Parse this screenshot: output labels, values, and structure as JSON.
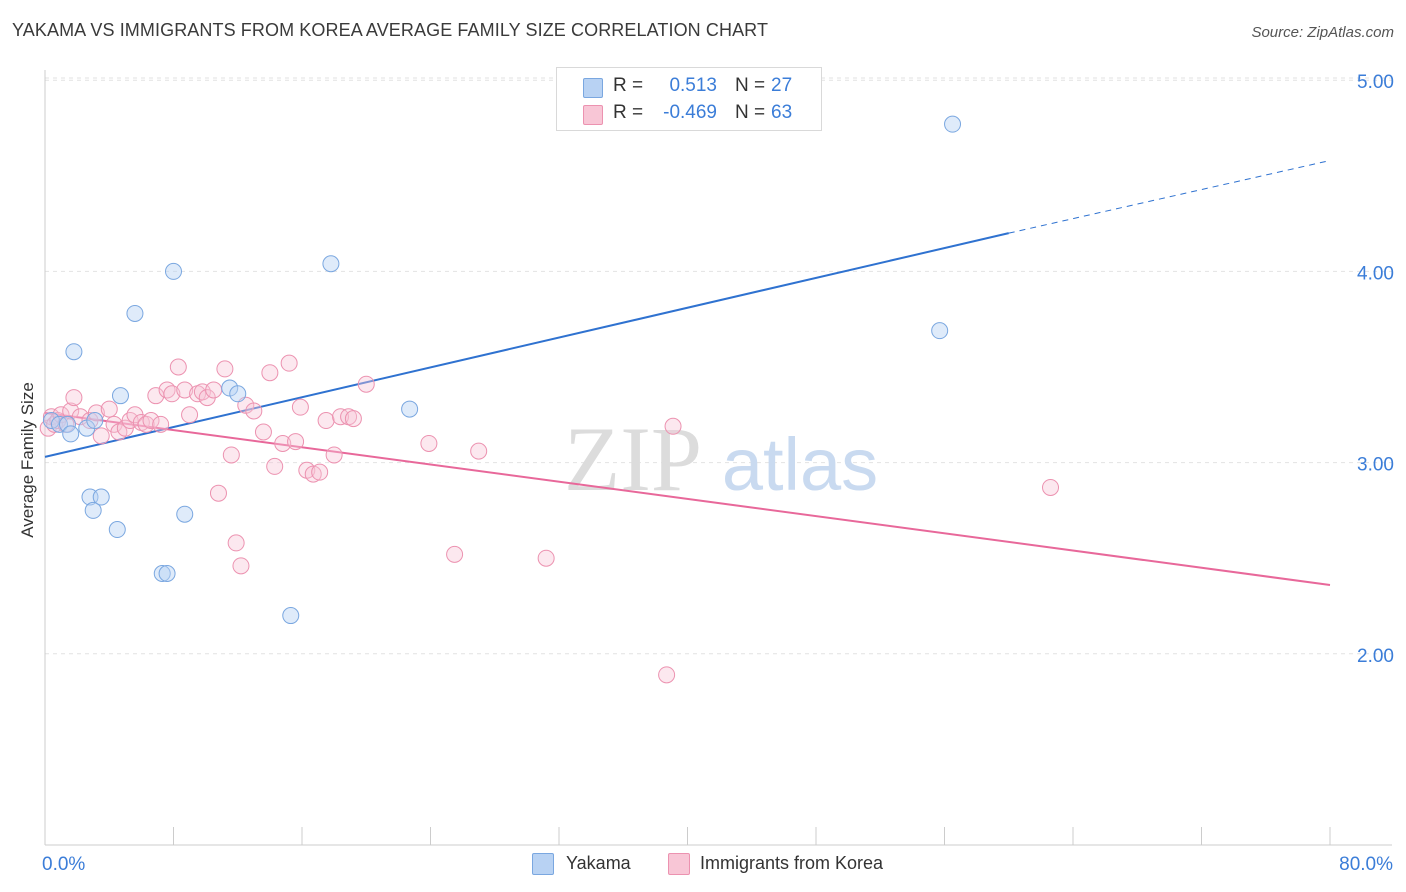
{
  "title": "YAKAMA VS IMMIGRANTS FROM KOREA AVERAGE FAMILY SIZE CORRELATION CHART",
  "source": "Source: ZipAtlas.com",
  "watermark": {
    "zip": "ZIP",
    "atlas": "atlas"
  },
  "legend": {
    "r_label": "R =",
    "n_label": "N =",
    "rows": [
      {
        "r": "0.513",
        "n": "27",
        "fill": "#b8d2f3",
        "stroke": "#7aa7e0"
      },
      {
        "r": "-0.469",
        "n": "63",
        "fill": "#f8c6d6",
        "stroke": "#ec92b0"
      }
    ]
  },
  "bottom_legend": {
    "yakama": "Yakama",
    "korea": "Immigrants from Korea"
  },
  "colors": {
    "yakama_line": "#2f72d0",
    "korea_line": "#e8689a",
    "tick_label": "#3b7dd8",
    "grid": "#e2e2e2"
  },
  "chart_data": {
    "type": "scatter",
    "title": "YAKAMA VS IMMIGRANTS FROM KOREA AVERAGE FAMILY SIZE CORRELATION CHART",
    "xlabel": "",
    "ylabel": "Average Family Size",
    "xlim": [
      0,
      80
    ],
    "ylim": [
      1.0,
      5.4
    ],
    "x_tick_labels": [
      "0.0%",
      "80.0%"
    ],
    "y_ticks": [
      2.0,
      3.0,
      4.0,
      5.0
    ],
    "y_tick_labels": [
      "2.00",
      "3.00",
      "4.00",
      "5.00"
    ],
    "grid": true,
    "legend_position": "top-center",
    "series": [
      {
        "name": "Yakama",
        "color": "#7aa7e0",
        "points": [
          [
            0.4,
            3.22
          ],
          [
            0.9,
            3.2
          ],
          [
            1.4,
            3.2
          ],
          [
            1.6,
            3.15
          ],
          [
            1.8,
            3.58
          ],
          [
            2.6,
            3.18
          ],
          [
            2.8,
            2.82
          ],
          [
            3.0,
            2.75
          ],
          [
            3.1,
            3.22
          ],
          [
            3.5,
            2.82
          ],
          [
            4.5,
            2.65
          ],
          [
            4.7,
            3.35
          ],
          [
            5.6,
            3.78
          ],
          [
            7.3,
            2.42
          ],
          [
            7.6,
            2.42
          ],
          [
            8.0,
            4.0
          ],
          [
            8.7,
            2.73
          ],
          [
            11.5,
            3.39
          ],
          [
            12.0,
            3.36
          ],
          [
            15.3,
            2.2
          ],
          [
            17.8,
            4.04
          ],
          [
            22.7,
            3.28
          ],
          [
            55.7,
            3.69
          ],
          [
            56.5,
            4.77
          ]
        ],
        "trend": {
          "x": [
            0,
            60
          ],
          "y": [
            3.03,
            4.2
          ],
          "dashed_to": {
            "x": 80,
            "y": 4.58
          }
        }
      },
      {
        "name": "Immigrants from Korea",
        "color": "#ec92b0",
        "points": [
          [
            0.2,
            3.18
          ],
          [
            0.4,
            3.24
          ],
          [
            0.6,
            3.2
          ],
          [
            0.8,
            3.22
          ],
          [
            1.0,
            3.25
          ],
          [
            1.3,
            3.2
          ],
          [
            1.6,
            3.27
          ],
          [
            1.8,
            3.34
          ],
          [
            2.2,
            3.24
          ],
          [
            2.8,
            3.22
          ],
          [
            3.2,
            3.26
          ],
          [
            3.5,
            3.14
          ],
          [
            4.0,
            3.28
          ],
          [
            4.3,
            3.2
          ],
          [
            4.6,
            3.16
          ],
          [
            5.0,
            3.18
          ],
          [
            5.3,
            3.22
          ],
          [
            5.6,
            3.25
          ],
          [
            6.0,
            3.21
          ],
          [
            6.3,
            3.2
          ],
          [
            6.6,
            3.22
          ],
          [
            6.9,
            3.35
          ],
          [
            7.2,
            3.2
          ],
          [
            7.6,
            3.38
          ],
          [
            7.9,
            3.36
          ],
          [
            8.3,
            3.5
          ],
          [
            8.7,
            3.38
          ],
          [
            9.0,
            3.25
          ],
          [
            9.5,
            3.36
          ],
          [
            9.8,
            3.37
          ],
          [
            10.1,
            3.34
          ],
          [
            10.5,
            3.38
          ],
          [
            10.8,
            2.84
          ],
          [
            11.2,
            3.49
          ],
          [
            11.6,
            3.04
          ],
          [
            11.9,
            2.58
          ],
          [
            12.2,
            2.46
          ],
          [
            12.5,
            3.3
          ],
          [
            13.0,
            3.27
          ],
          [
            13.6,
            3.16
          ],
          [
            14.0,
            3.47
          ],
          [
            14.3,
            2.98
          ],
          [
            14.8,
            3.1
          ],
          [
            15.2,
            3.52
          ],
          [
            15.6,
            3.11
          ],
          [
            15.9,
            3.29
          ],
          [
            16.3,
            2.96
          ],
          [
            16.7,
            2.94
          ],
          [
            17.1,
            2.95
          ],
          [
            17.5,
            3.22
          ],
          [
            18.0,
            3.04
          ],
          [
            18.4,
            3.24
          ],
          [
            18.9,
            3.24
          ],
          [
            19.2,
            3.23
          ],
          [
            20.0,
            3.41
          ],
          [
            23.9,
            3.1
          ],
          [
            25.5,
            2.52
          ],
          [
            27.0,
            3.06
          ],
          [
            31.2,
            2.5
          ],
          [
            38.7,
            1.89
          ],
          [
            39.1,
            3.19
          ],
          [
            62.6,
            2.87
          ]
        ],
        "trend": {
          "x": [
            0,
            80
          ],
          "y": [
            3.26,
            2.36
          ]
        }
      }
    ]
  }
}
